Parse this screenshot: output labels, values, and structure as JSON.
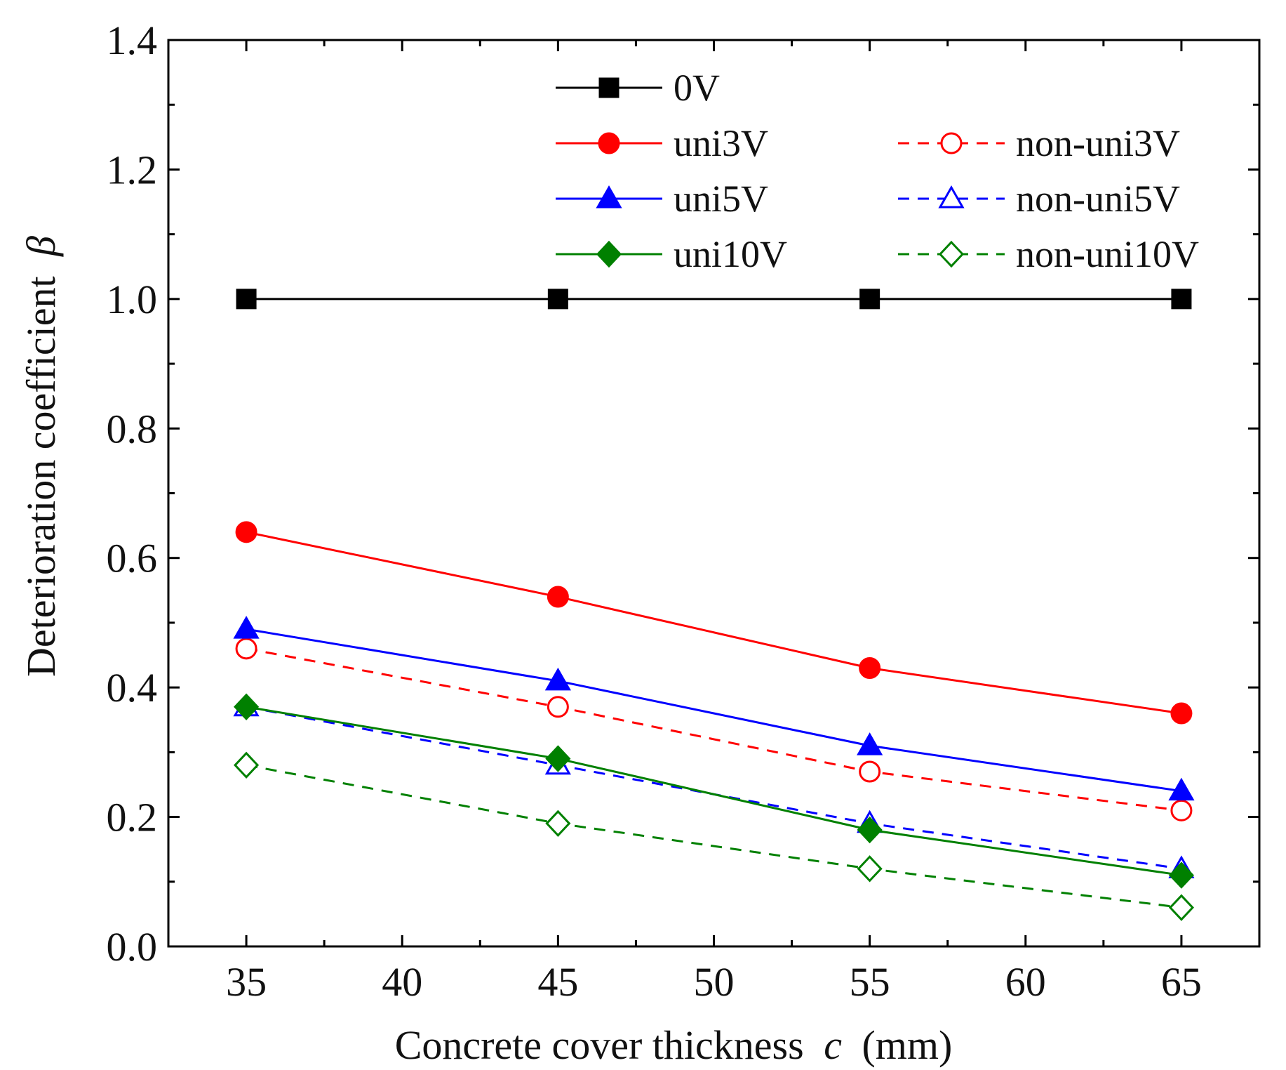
{
  "chart_data": {
    "type": "line",
    "title": "",
    "xlabel": "Concrete cover thickness",
    "xlabel_var": "c",
    "xlabel_unit": "(mm)",
    "ylabel": "Deterioration coefficient",
    "ylabel_var": "β",
    "xlim": [
      32.5,
      67.5
    ],
    "ylim": [
      0.0,
      1.4
    ],
    "x_ticks": [
      35,
      40,
      45,
      50,
      55,
      60,
      65
    ],
    "x_tick_labels": [
      "35",
      "40",
      "45",
      "50",
      "55",
      "60",
      "65"
    ],
    "y_ticks": [
      0.0,
      0.2,
      0.4,
      0.6,
      0.8,
      1.0,
      1.2,
      1.4
    ],
    "y_tick_labels": [
      "0.0",
      "0.2",
      "0.4",
      "0.6",
      "0.8",
      "1.0",
      "1.2",
      "1.4"
    ],
    "grid": false,
    "legend_position": "top-right",
    "x": [
      35,
      45,
      55,
      65
    ],
    "series": [
      {
        "name": "0V",
        "values": [
          1.0,
          1.0,
          1.0,
          1.0
        ],
        "color": "#000000",
        "marker": "square",
        "filled": true,
        "dash": false
      },
      {
        "name": "uni3V",
        "values": [
          0.64,
          0.54,
          0.43,
          0.36
        ],
        "color": "#ff0000",
        "marker": "circle",
        "filled": true,
        "dash": false
      },
      {
        "name": "non-uni3V",
        "values": [
          0.46,
          0.37,
          0.27,
          0.21
        ],
        "color": "#ff0000",
        "marker": "circle",
        "filled": false,
        "dash": true
      },
      {
        "name": "uni5V",
        "values": [
          0.49,
          0.41,
          0.31,
          0.24
        ],
        "color": "#0000ff",
        "marker": "triangle",
        "filled": true,
        "dash": false
      },
      {
        "name": "non-uni5V",
        "values": [
          0.37,
          0.28,
          0.19,
          0.12
        ],
        "color": "#0000ff",
        "marker": "triangle",
        "filled": false,
        "dash": true
      },
      {
        "name": "uni10V",
        "values": [
          0.37,
          0.29,
          0.18,
          0.11
        ],
        "color": "#008000",
        "marker": "diamond",
        "filled": true,
        "dash": false
      },
      {
        "name": "non-uni10V",
        "values": [
          0.28,
          0.19,
          0.12,
          0.06
        ],
        "color": "#008000",
        "marker": "diamond",
        "filled": false,
        "dash": true
      }
    ]
  }
}
